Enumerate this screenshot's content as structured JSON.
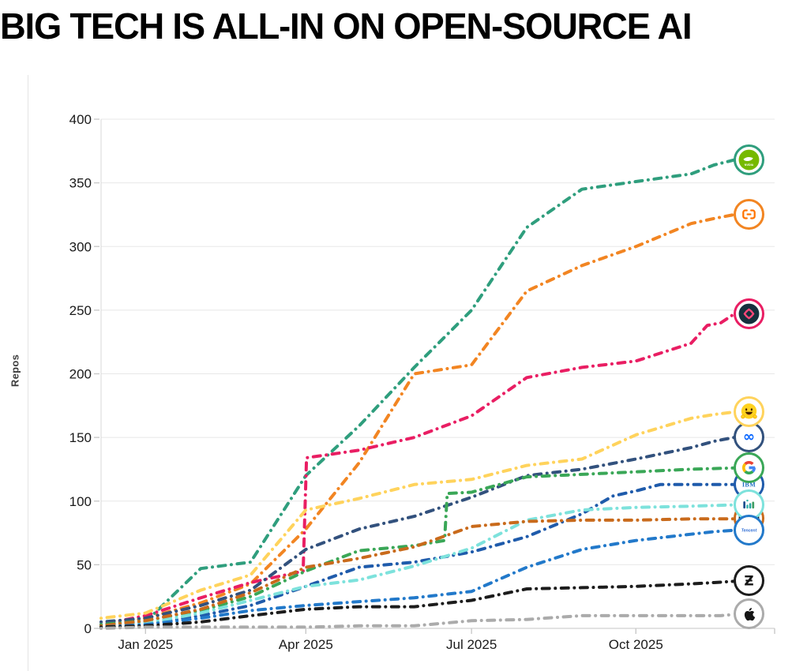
{
  "title": "BIG TECH IS ALL-IN ON OPEN-SOURCE AI",
  "chart_data": {
    "type": "line",
    "title": "BIG TECH IS ALL-IN ON OPEN-SOURCE AI",
    "xlabel": "",
    "ylabel": "Repos",
    "ylim": [
      0,
      400
    ],
    "yticks": [
      0,
      50,
      100,
      150,
      200,
      250,
      300,
      350,
      400
    ],
    "grid": "horizontal",
    "legend_position": "line-end-logos",
    "line_style": "dot-dash",
    "x_range_dates": [
      "Dec 2024",
      "Dec 2025"
    ],
    "xticks": [
      {
        "label": "Jan 2025",
        "f": 0.066
      },
      {
        "label": "Apr 2025",
        "f": 0.304
      },
      {
        "label": "Jul 2025",
        "f": 0.55
      },
      {
        "label": "Oct 2025",
        "f": 0.794
      }
    ],
    "sample_times": [
      "Dec 2024",
      "Jan 2025",
      "Feb 2025",
      "Mar 2025",
      "Apr 2025",
      "May 2025",
      "Jun 2025",
      "Jul 2025",
      "Aug 2025",
      "Sep 2025",
      "Oct 2025",
      "Nov 2025",
      "Dec 2025"
    ],
    "series": [
      {
        "name": "nvidia",
        "icon": "nvidia-logo",
        "color": "#2f9e7d",
        "end_value": 368,
        "points": [
          [
            0,
            2
          ],
          [
            0.066,
            5
          ],
          [
            0.148,
            47
          ],
          [
            0.222,
            52
          ],
          [
            0.304,
            120
          ],
          [
            0.383,
            159
          ],
          [
            0.465,
            205
          ],
          [
            0.55,
            250
          ],
          [
            0.632,
            315
          ],
          [
            0.714,
            345
          ],
          [
            0.794,
            351
          ],
          [
            0.876,
            357
          ],
          [
            0.91,
            364
          ],
          [
            0.94,
            368
          ]
        ]
      },
      {
        "name": "alibaba",
        "icon": "alibaba-logo",
        "color": "#f28522",
        "end_value": 325,
        "points": [
          [
            0,
            2
          ],
          [
            0.066,
            8
          ],
          [
            0.148,
            20
          ],
          [
            0.222,
            35
          ],
          [
            0.304,
            78
          ],
          [
            0.383,
            130
          ],
          [
            0.465,
            200
          ],
          [
            0.55,
            207
          ],
          [
            0.632,
            265
          ],
          [
            0.714,
            285
          ],
          [
            0.794,
            300
          ],
          [
            0.876,
            318
          ],
          [
            0.91,
            322
          ],
          [
            0.94,
            325
          ]
        ]
      },
      {
        "name": "minimax",
        "icon": "minimax-logo",
        "color": "#e91e63",
        "end_value": 247,
        "points": [
          [
            0,
            3
          ],
          [
            0.066,
            10
          ],
          [
            0.148,
            24
          ],
          [
            0.222,
            36
          ],
          [
            0.3,
            45
          ],
          [
            0.305,
            134
          ],
          [
            0.383,
            140
          ],
          [
            0.465,
            150
          ],
          [
            0.55,
            167
          ],
          [
            0.632,
            197
          ],
          [
            0.714,
            205
          ],
          [
            0.794,
            210
          ],
          [
            0.876,
            224
          ],
          [
            0.9,
            238
          ],
          [
            0.92,
            240
          ],
          [
            0.94,
            247
          ]
        ]
      },
      {
        "name": "hugging-face",
        "icon": "hugging-face-logo",
        "color": "#ffd35c",
        "end_value": 170,
        "points": [
          [
            0,
            8
          ],
          [
            0.066,
            12
          ],
          [
            0.148,
            30
          ],
          [
            0.222,
            42
          ],
          [
            0.304,
            93
          ],
          [
            0.383,
            102
          ],
          [
            0.465,
            113
          ],
          [
            0.55,
            117
          ],
          [
            0.632,
            128
          ],
          [
            0.714,
            133
          ],
          [
            0.794,
            152
          ],
          [
            0.876,
            165
          ],
          [
            0.91,
            168
          ],
          [
            0.94,
            170
          ]
        ]
      },
      {
        "name": "meta",
        "icon": "meta-logo",
        "color": "#32517d",
        "end_value": 150,
        "points": [
          [
            0,
            5
          ],
          [
            0.066,
            8
          ],
          [
            0.148,
            18
          ],
          [
            0.222,
            30
          ],
          [
            0.304,
            62
          ],
          [
            0.383,
            78
          ],
          [
            0.465,
            88
          ],
          [
            0.55,
            103
          ],
          [
            0.632,
            120
          ],
          [
            0.714,
            125
          ],
          [
            0.794,
            133
          ],
          [
            0.876,
            142
          ],
          [
            0.91,
            147
          ],
          [
            0.94,
            150
          ]
        ]
      },
      {
        "name": "google",
        "icon": "google-logo",
        "color": "#3aa757",
        "end_value": 126,
        "points": [
          [
            0,
            3
          ],
          [
            0.066,
            6
          ],
          [
            0.148,
            14
          ],
          [
            0.222,
            25
          ],
          [
            0.304,
            45
          ],
          [
            0.383,
            61
          ],
          [
            0.465,
            65
          ],
          [
            0.51,
            69
          ],
          [
            0.514,
            106
          ],
          [
            0.55,
            107
          ],
          [
            0.632,
            119
          ],
          [
            0.714,
            121
          ],
          [
            0.794,
            123
          ],
          [
            0.876,
            125
          ],
          [
            0.94,
            126
          ]
        ]
      },
      {
        "name": "ibm",
        "icon": "ibm-logo",
        "color": "#1f5bab",
        "end_value": 113,
        "points": [
          [
            0,
            1
          ],
          [
            0.066,
            3
          ],
          [
            0.148,
            10
          ],
          [
            0.222,
            18
          ],
          [
            0.304,
            33
          ],
          [
            0.383,
            48
          ],
          [
            0.465,
            52
          ],
          [
            0.55,
            60
          ],
          [
            0.632,
            72
          ],
          [
            0.714,
            90
          ],
          [
            0.76,
            104
          ],
          [
            0.794,
            108
          ],
          [
            0.83,
            113
          ],
          [
            0.876,
            113
          ],
          [
            0.94,
            113
          ]
        ]
      },
      {
        "name": "stepfun",
        "icon": "stepfun-logo",
        "color": "#7de2dc",
        "end_value": 97,
        "points": [
          [
            0,
            1
          ],
          [
            0.066,
            4
          ],
          [
            0.148,
            12
          ],
          [
            0.222,
            22
          ],
          [
            0.304,
            33
          ],
          [
            0.383,
            38
          ],
          [
            0.465,
            49
          ],
          [
            0.55,
            63
          ],
          [
            0.632,
            85
          ],
          [
            0.714,
            93
          ],
          [
            0.794,
            95
          ],
          [
            0.876,
            96
          ],
          [
            0.94,
            97
          ]
        ]
      },
      {
        "name": "mistral-ai",
        "icon": "mistral-logo",
        "color": "#c96a1b",
        "end_value": 86,
        "points": [
          [
            0,
            2
          ],
          [
            0.066,
            6
          ],
          [
            0.148,
            15
          ],
          [
            0.222,
            28
          ],
          [
            0.304,
            48
          ],
          [
            0.383,
            55
          ],
          [
            0.465,
            64
          ],
          [
            0.55,
            80
          ],
          [
            0.632,
            84
          ],
          [
            0.714,
            85
          ],
          [
            0.794,
            85
          ],
          [
            0.876,
            86
          ],
          [
            0.94,
            86
          ]
        ]
      },
      {
        "name": "tencent",
        "icon": "tencent-logo",
        "color": "#2279ca",
        "end_value": 77,
        "points": [
          [
            0,
            1
          ],
          [
            0.066,
            3
          ],
          [
            0.148,
            8
          ],
          [
            0.222,
            14
          ],
          [
            0.304,
            18
          ],
          [
            0.383,
            21
          ],
          [
            0.465,
            24
          ],
          [
            0.55,
            29
          ],
          [
            0.632,
            48
          ],
          [
            0.714,
            62
          ],
          [
            0.794,
            69
          ],
          [
            0.876,
            74
          ],
          [
            0.91,
            76
          ],
          [
            0.94,
            77
          ]
        ]
      },
      {
        "name": "zhipu",
        "icon": "zhipu-logo",
        "color": "#1c1c1c",
        "end_value": 37,
        "points": [
          [
            0,
            1
          ],
          [
            0.066,
            2
          ],
          [
            0.148,
            5
          ],
          [
            0.222,
            10
          ],
          [
            0.304,
            15
          ],
          [
            0.383,
            17
          ],
          [
            0.465,
            17
          ],
          [
            0.55,
            22
          ],
          [
            0.632,
            31
          ],
          [
            0.714,
            32
          ],
          [
            0.794,
            33
          ],
          [
            0.876,
            35
          ],
          [
            0.91,
            36
          ],
          [
            0.94,
            37
          ]
        ]
      },
      {
        "name": "apple",
        "icon": "apple-logo",
        "color": "#ababab",
        "end_value": 11,
        "points": [
          [
            0,
            0
          ],
          [
            0.066,
            1
          ],
          [
            0.148,
            1
          ],
          [
            0.222,
            1
          ],
          [
            0.304,
            1
          ],
          [
            0.383,
            2
          ],
          [
            0.465,
            2
          ],
          [
            0.55,
            6
          ],
          [
            0.632,
            7
          ],
          [
            0.714,
            10
          ],
          [
            0.794,
            10
          ],
          [
            0.876,
            10
          ],
          [
            0.92,
            10
          ],
          [
            0.94,
            11
          ]
        ]
      }
    ],
    "colors": {
      "grid": "#e8e8e8",
      "axis": "#c4c4c4",
      "tick": "#c9c9c9",
      "tick_text": "#1a1a1a",
      "background": "#ffffff"
    }
  }
}
